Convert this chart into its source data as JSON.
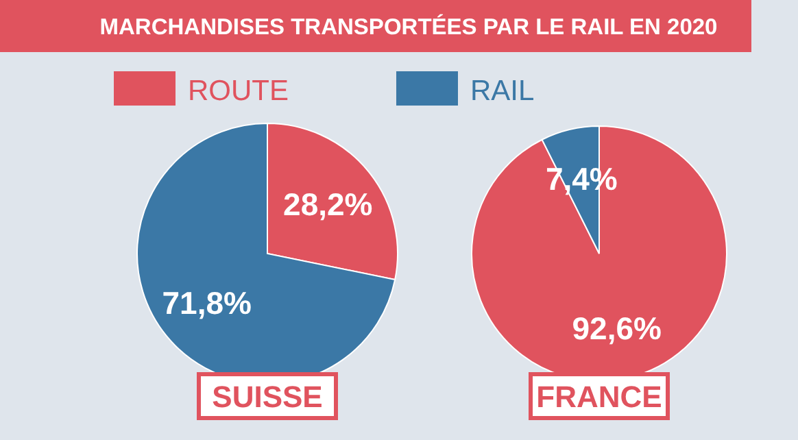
{
  "chart_data": [
    {
      "type": "pie",
      "title": "MARCHANDISES TRANSPORTÉES PAR LE RAIL EN 2020",
      "xlabel": "SUISSE",
      "categories": [
        "ROUTE",
        "RAIL"
      ],
      "values": [
        28.2,
        71.8
      ],
      "colors": [
        "#e0535e",
        "#3b78a6"
      ],
      "value_labels": [
        "28,2%",
        "71,8%"
      ],
      "legend": "top"
    },
    {
      "type": "pie",
      "xlabel": "FRANCE",
      "categories": [
        null,
        null
      ],
      "values": [
        92.6,
        7.4
      ],
      "colors": [
        "#e0535e",
        "#3b78a6"
      ],
      "value_labels": [
        "92,6%",
        "7,4%"
      ]
    }
  ]
}
